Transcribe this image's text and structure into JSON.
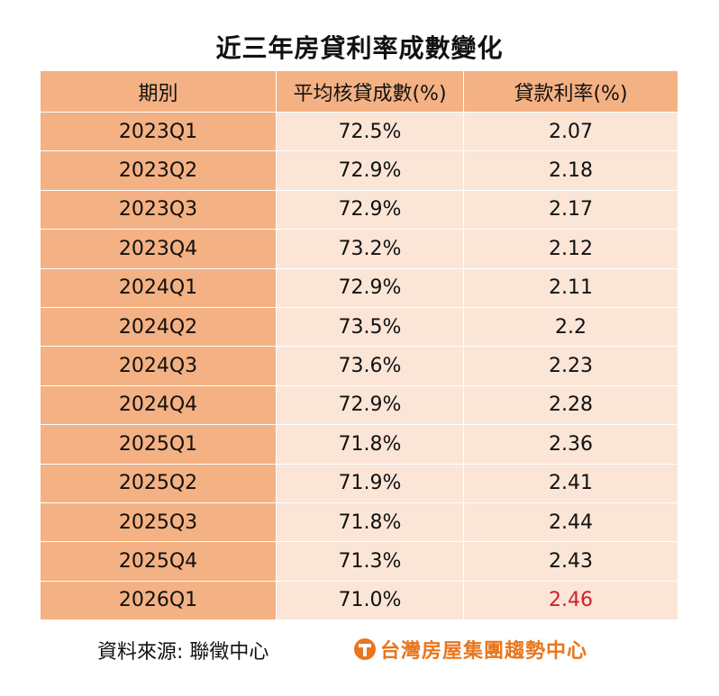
{
  "title": "近三年房貸利率成數變化",
  "table": {
    "headers": [
      "期別",
      "平均核貸成數(%)",
      "貸款利率(%)"
    ],
    "rows": [
      {
        "period": "2023Q1",
        "ratio": "72.5%",
        "rate": "2.07"
      },
      {
        "period": "2023Q2",
        "ratio": "72.9%",
        "rate": "2.18"
      },
      {
        "period": "2023Q3",
        "ratio": "72.9%",
        "rate": "2.17"
      },
      {
        "period": "2023Q4",
        "ratio": "73.2%",
        "rate": "2.12"
      },
      {
        "period": "2024Q1",
        "ratio": "72.9%",
        "rate": "2.11"
      },
      {
        "period": "2024Q2",
        "ratio": "73.5%",
        "rate": "2.2"
      },
      {
        "period": "2024Q3",
        "ratio": "73.6%",
        "rate": "2.23"
      },
      {
        "period": "2024Q4",
        "ratio": "72.9%",
        "rate": "2.28"
      },
      {
        "period": "2025Q1",
        "ratio": "71.8%",
        "rate": "2.36"
      },
      {
        "period": "2025Q2",
        "ratio": "71.9%",
        "rate": "2.41"
      },
      {
        "period": "2025Q3",
        "ratio": "71.8%",
        "rate": "2.44"
      },
      {
        "period": "2025Q4",
        "ratio": "71.3%",
        "rate": "2.43"
      },
      {
        "period": "2026Q1",
        "ratio": "71.0%",
        "rate": "2.46"
      }
    ],
    "highlight_color": "#d0202a"
  },
  "colors": {
    "header_bg": "#f4b183",
    "period_bg": "#f4b183",
    "value_bg": "#fbe5d6",
    "brand": "#e8761e"
  },
  "footer": {
    "source": "資料來源:  聯徵中心",
    "brand_text": "台灣房屋集團趨勢中心",
    "brand_icon": "taiwan-house-logo-icon"
  }
}
